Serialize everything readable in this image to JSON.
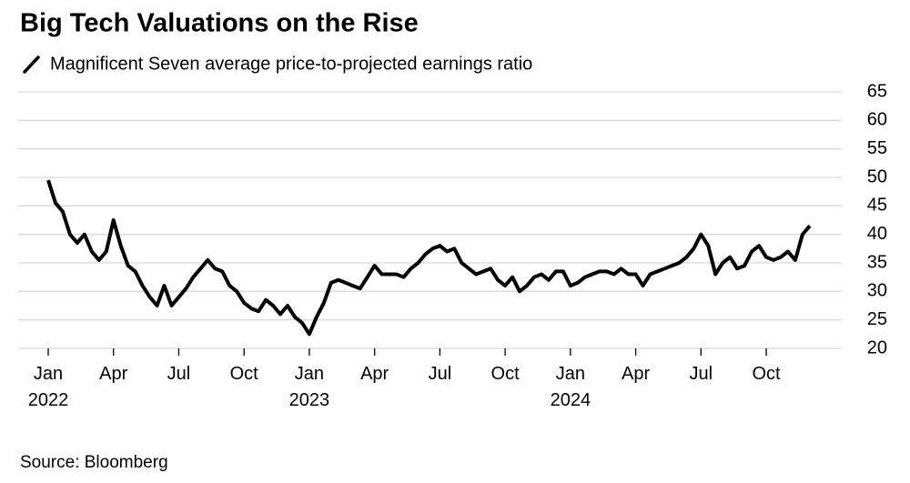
{
  "chart_data": {
    "type": "line",
    "title": "Big Tech Valuations on the Rise",
    "subtitle": "Magnificent Seven average price-to-projected earnings ratio",
    "source": "Source: Bloomberg",
    "categories": [
      "Jan 2022",
      null,
      null,
      null,
      null,
      null,
      null,
      null,
      null,
      "Apr",
      null,
      null,
      null,
      null,
      null,
      null,
      null,
      null,
      "Jul",
      null,
      null,
      null,
      null,
      null,
      null,
      null,
      null,
      "Oct",
      null,
      null,
      null,
      null,
      null,
      null,
      null,
      null,
      "Jan 2023",
      null,
      null,
      null,
      null,
      null,
      null,
      null,
      null,
      "Apr",
      null,
      null,
      null,
      null,
      null,
      null,
      null,
      null,
      "Jul",
      null,
      null,
      null,
      null,
      null,
      null,
      null,
      null,
      "Oct",
      null,
      null,
      null,
      null,
      null,
      null,
      null,
      null,
      "Jan 2024",
      null,
      null,
      null,
      null,
      null,
      null,
      null,
      null,
      "Apr",
      null,
      null,
      null,
      null,
      null,
      null,
      null,
      null,
      "Jul",
      null,
      null,
      null,
      null,
      null,
      null,
      null,
      null,
      "Oct",
      null,
      null,
      null,
      null,
      null,
      null
    ],
    "series": [
      {
        "name": "Magnificent Seven average price-to-projected earnings ratio",
        "color": "#000000",
        "values": [
          49.5,
          45.5,
          44,
          40,
          38.5,
          40,
          37,
          35.5,
          37,
          42.5,
          38,
          34.5,
          33.5,
          31,
          29,
          27.5,
          31,
          27.5,
          29,
          30.5,
          32.5,
          34,
          35.5,
          34,
          33.5,
          31,
          30,
          28,
          27,
          26.5,
          28.5,
          27.5,
          26,
          27.5,
          25.5,
          24.5,
          22.5,
          25.5,
          28,
          31.5,
          32,
          31.5,
          31,
          30.5,
          32.5,
          34.5,
          33,
          33,
          33,
          32.5,
          34,
          35,
          36.5,
          37.5,
          38,
          37,
          37.5,
          35,
          34,
          33,
          33.5,
          34,
          32,
          31,
          32.5,
          30,
          31,
          32.5,
          33,
          32,
          33.5,
          33.5,
          31,
          31.5,
          32.5,
          33,
          33.5,
          33.5,
          33,
          34,
          33,
          33,
          31,
          33,
          33.5,
          34,
          34.5,
          35,
          36,
          37.5,
          40,
          38,
          33,
          35,
          36,
          34,
          34.5,
          37,
          38,
          36,
          35.5,
          36,
          37,
          35.5,
          40,
          41.5
        ]
      }
    ],
    "ylim": [
      20,
      65
    ],
    "yticks": [
      20,
      25,
      30,
      35,
      40,
      45,
      50,
      55,
      60,
      65
    ],
    "grid": true
  }
}
